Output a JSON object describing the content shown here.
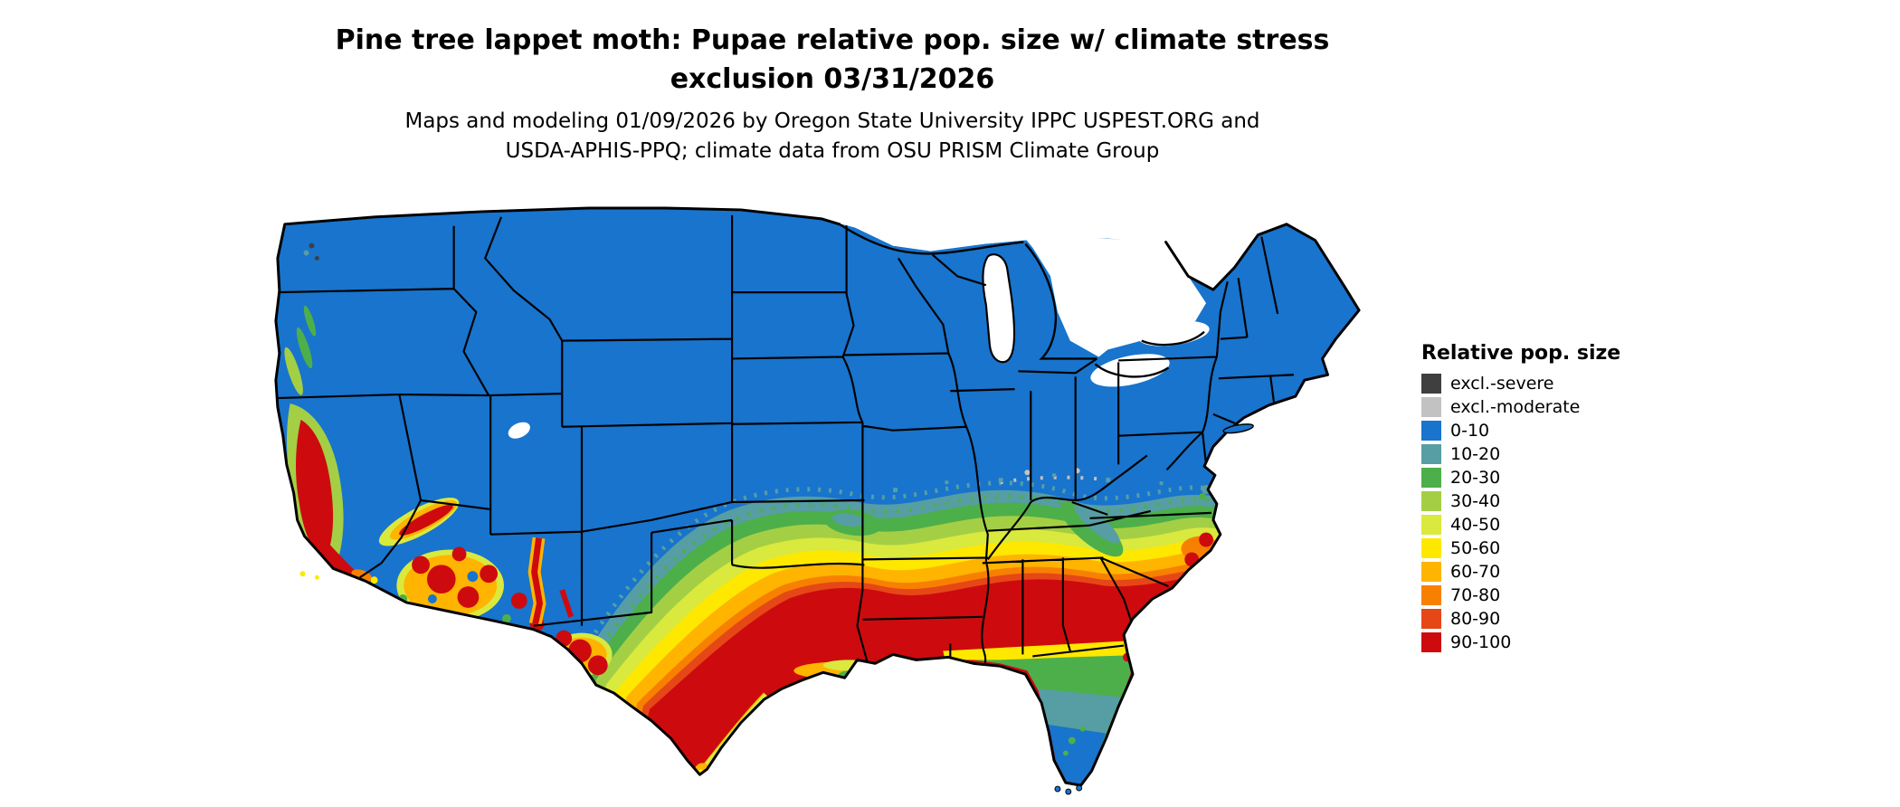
{
  "title": {
    "line1": "Pine tree lappet moth: Pupae relative pop. size w/ climate stress",
    "line2": "exclusion 03/31/2026"
  },
  "subtitle": {
    "line1": "Maps and modeling 01/09/2026 by Oregon State University IPPC USPEST.ORG and",
    "line2": "USDA-APHIS-PPQ; climate data from OSU PRISM Climate Group"
  },
  "map": {
    "description": "Contiguous United States raster map of pupae relative population size",
    "border_color": "#000000",
    "water_color": "#ffffff"
  },
  "legend": {
    "title": "Relative pop. size",
    "items": [
      {
        "label": "excl.-severe",
        "color": "#3f3f3f"
      },
      {
        "label": "excl.-moderate",
        "color": "#c2c2c2"
      },
      {
        "label": "0-10",
        "color": "#1874cd"
      },
      {
        "label": "10-20",
        "color": "#569ea4"
      },
      {
        "label": "20-30",
        "color": "#4daf4a"
      },
      {
        "label": "30-40",
        "color": "#a4cf45"
      },
      {
        "label": "40-50",
        "color": "#d9e93e"
      },
      {
        "label": "50-60",
        "color": "#ffe800"
      },
      {
        "label": "60-70",
        "color": "#ffb400"
      },
      {
        "label": "70-80",
        "color": "#f88000"
      },
      {
        "label": "80-90",
        "color": "#e64717"
      },
      {
        "label": "90-100",
        "color": "#cd0b0e"
      }
    ]
  }
}
